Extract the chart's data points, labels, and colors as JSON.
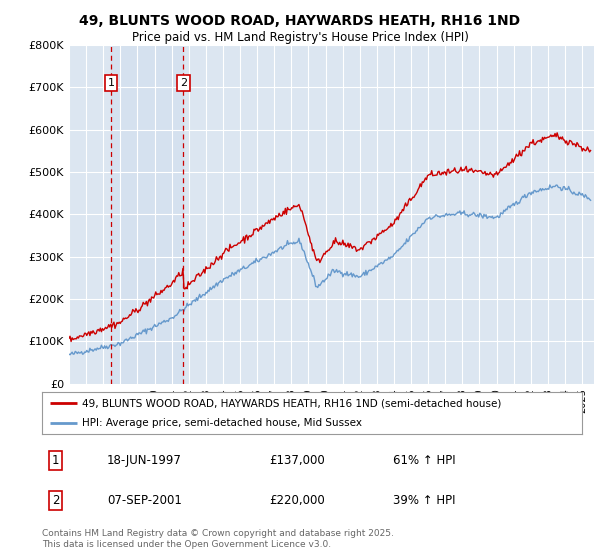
{
  "title": "49, BLUNTS WOOD ROAD, HAYWARDS HEATH, RH16 1ND",
  "subtitle": "Price paid vs. HM Land Registry's House Price Index (HPI)",
  "ylabel_ticks": [
    "£0",
    "£100K",
    "£200K",
    "£300K",
    "£400K",
    "£500K",
    "£600K",
    "£700K",
    "£800K"
  ],
  "ylim": [
    0,
    800000
  ],
  "xlim_start": 1995.0,
  "xlim_end": 2025.7,
  "legend_line1": "49, BLUNTS WOOD ROAD, HAYWARDS HEATH, RH16 1ND (semi-detached house)",
  "legend_line2": "HPI: Average price, semi-detached house, Mid Sussex",
  "transaction1": {
    "label": "1",
    "date": "18-JUN-1997",
    "price": 137000,
    "pct": "61% ↑ HPI",
    "year": 1997.46
  },
  "transaction2": {
    "label": "2",
    "date": "07-SEP-2001",
    "price": 220000,
    "pct": "39% ↑ HPI",
    "year": 2001.68
  },
  "red_color": "#cc0000",
  "blue_color": "#6699cc",
  "bg_color": "#dce6f1",
  "grid_color": "#ffffff",
  "footer": "Contains HM Land Registry data © Crown copyright and database right 2025.\nThis data is licensed under the Open Government Licence v3.0."
}
